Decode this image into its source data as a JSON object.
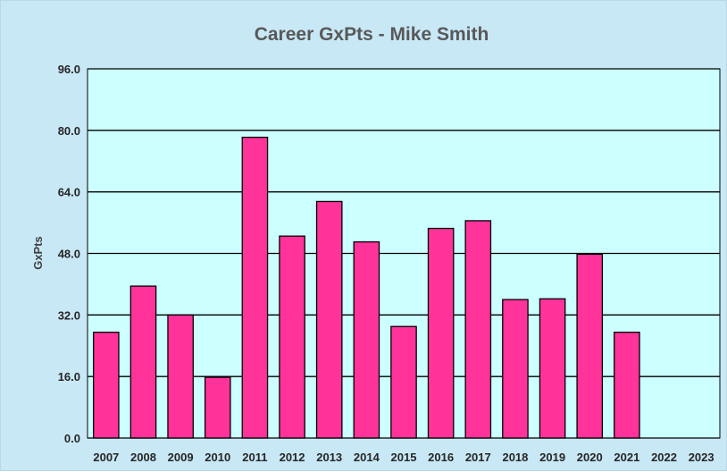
{
  "chart_data": {
    "type": "bar",
    "title": "Career GxPts - Mike Smith",
    "xlabel": "",
    "ylabel": "GxPts",
    "categories": [
      "2007",
      "2008",
      "2009",
      "2010",
      "2011",
      "2012",
      "2013",
      "2014",
      "2015",
      "2016",
      "2017",
      "2018",
      "2019",
      "2020",
      "2021",
      "2022",
      "2023"
    ],
    "values": [
      27.5,
      39.5,
      32.0,
      15.8,
      78.2,
      52.5,
      61.5,
      51.0,
      29.0,
      54.5,
      56.5,
      36.0,
      36.2,
      47.8,
      27.5,
      null,
      null
    ],
    "ylim": [
      0,
      96
    ],
    "yticks": [
      0,
      16,
      32,
      48,
      64,
      80,
      96
    ],
    "ytick_labels": [
      "0.0",
      "16.0",
      "32.0",
      "48.0",
      "64.0",
      "80.0",
      "96.0"
    ],
    "grid": true,
    "legend": "none",
    "colors": {
      "bar": "#ff3399",
      "bar_stroke": "#000000",
      "plot_background": "#ccffff",
      "chart_background": "#c8e8f6",
      "gridline": "#000000"
    }
  }
}
